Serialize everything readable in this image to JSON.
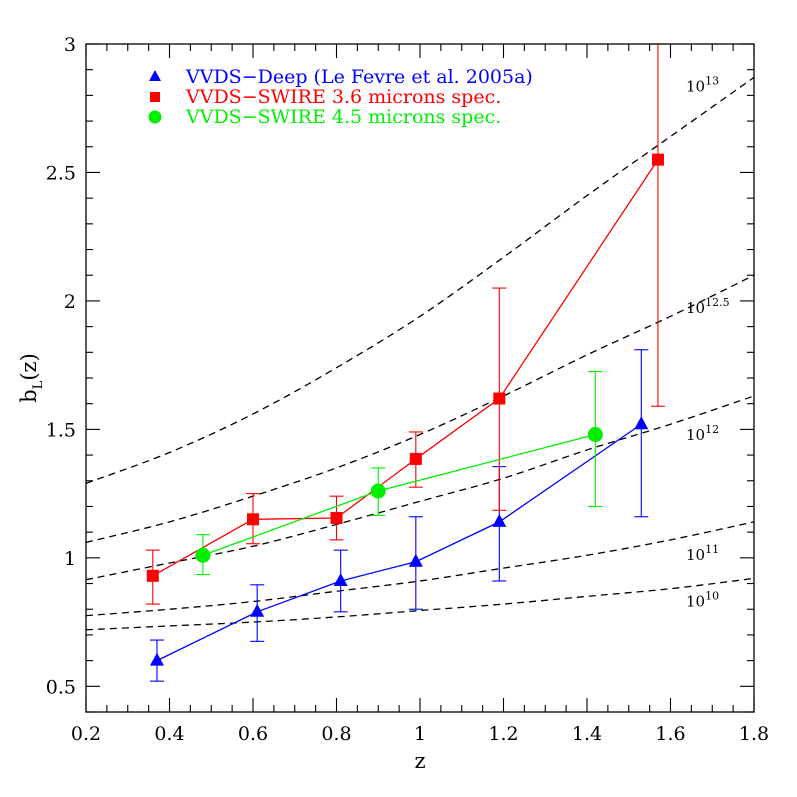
{
  "chart_data": {
    "type": "scatter",
    "title": "",
    "xlabel": "z",
    "ylabel": {
      "main": "b",
      "sub": "L",
      "suffix": "(z)"
    },
    "xlim": [
      0.2,
      1.8
    ],
    "ylim": [
      0.4,
      3.0
    ],
    "x_ticks": [
      "0.2",
      "0.4",
      "0.6",
      "0.8",
      "1",
      "1.2",
      "1.4",
      "1.6",
      "1.8"
    ],
    "x_tick_values": [
      0.2,
      0.4,
      0.6,
      0.8,
      1.0,
      1.2,
      1.4,
      1.6,
      1.8
    ],
    "y_ticks": [
      "0.5",
      "1",
      "1.5",
      "2",
      "2.5",
      "3"
    ],
    "y_tick_values": [
      0.5,
      1.0,
      1.5,
      2.0,
      2.5,
      3.0
    ],
    "grid": false,
    "legend_position": "top-left",
    "series": [
      {
        "name": "VVDS−Deep (Le Fevre et al. 2005a)",
        "color": "#0000ff",
        "marker": "triangle",
        "points": [
          {
            "x": 0.37,
            "y": 0.6,
            "ylo": 0.52,
            "yhi": 0.68
          },
          {
            "x": 0.61,
            "y": 0.79,
            "ylo": 0.675,
            "yhi": 0.895
          },
          {
            "x": 0.81,
            "y": 0.91,
            "ylo": 0.79,
            "yhi": 1.03
          },
          {
            "x": 0.99,
            "y": 0.985,
            "ylo": 0.8,
            "yhi": 1.16
          },
          {
            "x": 1.19,
            "y": 1.14,
            "ylo": 0.91,
            "yhi": 1.355
          },
          {
            "x": 1.53,
            "y": 1.52,
            "ylo": 1.16,
            "yhi": 1.81
          }
        ]
      },
      {
        "name": "VVDS−SWIRE 3.6 microns spec.",
        "color": "#ff0000",
        "marker": "square",
        "points": [
          {
            "x": 0.36,
            "y": 0.93,
            "ylo": 0.82,
            "yhi": 1.03
          },
          {
            "x": 0.6,
            "y": 1.15,
            "ylo": 1.055,
            "yhi": 1.25
          },
          {
            "x": 0.8,
            "y": 1.155,
            "ylo": 1.07,
            "yhi": 1.24
          },
          {
            "x": 0.99,
            "y": 1.385,
            "ylo": 1.275,
            "yhi": 1.49
          },
          {
            "x": 1.19,
            "y": 1.62,
            "ylo": 1.185,
            "yhi": 2.05
          },
          {
            "x": 1.57,
            "y": 2.55,
            "ylo": 1.59,
            "yhi": 3.0
          }
        ]
      },
      {
        "name": "VVDS−SWIRE 4.5 microns spec.",
        "color": "#00ee00",
        "marker": "circle",
        "points": [
          {
            "x": 0.48,
            "y": 1.01,
            "ylo": 0.935,
            "yhi": 1.09
          },
          {
            "x": 0.9,
            "y": 1.26,
            "ylo": 1.165,
            "yhi": 1.35
          },
          {
            "x": 1.42,
            "y": 1.48,
            "ylo": 1.2,
            "yhi": 1.725
          }
        ]
      }
    ],
    "halo_curves": [
      {
        "label_base": "10",
        "label_exp": "13",
        "points": [
          [
            0.2,
            1.29
          ],
          [
            0.4,
            1.41
          ],
          [
            0.6,
            1.56
          ],
          [
            0.8,
            1.74
          ],
          [
            1.0,
            1.94
          ],
          [
            1.2,
            2.17
          ],
          [
            1.4,
            2.41
          ],
          [
            1.6,
            2.64
          ],
          [
            1.8,
            2.87
          ]
        ]
      },
      {
        "label_base": "10",
        "label_exp": "12.5",
        "points": [
          [
            0.2,
            1.06
          ],
          [
            0.4,
            1.14
          ],
          [
            0.6,
            1.24
          ],
          [
            0.8,
            1.35
          ],
          [
            1.0,
            1.48
          ],
          [
            1.2,
            1.63
          ],
          [
            1.4,
            1.79
          ],
          [
            1.6,
            1.94
          ],
          [
            1.8,
            2.1
          ]
        ]
      },
      {
        "label_base": "10",
        "label_exp": "12",
        "points": [
          [
            0.2,
            0.915
          ],
          [
            0.4,
            0.98
          ],
          [
            0.6,
            1.045
          ],
          [
            0.8,
            1.13
          ],
          [
            1.0,
            1.22
          ],
          [
            1.2,
            1.31
          ],
          [
            1.4,
            1.42
          ],
          [
            1.6,
            1.52
          ],
          [
            1.8,
            1.63
          ]
        ]
      },
      {
        "label_base": "10",
        "label_exp": "11",
        "points": [
          [
            0.2,
            0.775
          ],
          [
            0.4,
            0.8
          ],
          [
            0.6,
            0.83
          ],
          [
            0.8,
            0.87
          ],
          [
            1.0,
            0.91
          ],
          [
            1.2,
            0.96
          ],
          [
            1.4,
            1.01
          ],
          [
            1.6,
            1.07
          ],
          [
            1.8,
            1.14
          ]
        ]
      },
      {
        "label_base": "10",
        "label_exp": "10",
        "points": [
          [
            0.2,
            0.72
          ],
          [
            0.4,
            0.735
          ],
          [
            0.6,
            0.75
          ],
          [
            0.8,
            0.77
          ],
          [
            1.0,
            0.795
          ],
          [
            1.2,
            0.82
          ],
          [
            1.4,
            0.85
          ],
          [
            1.6,
            0.88
          ],
          [
            1.8,
            0.92
          ]
        ]
      }
    ]
  }
}
